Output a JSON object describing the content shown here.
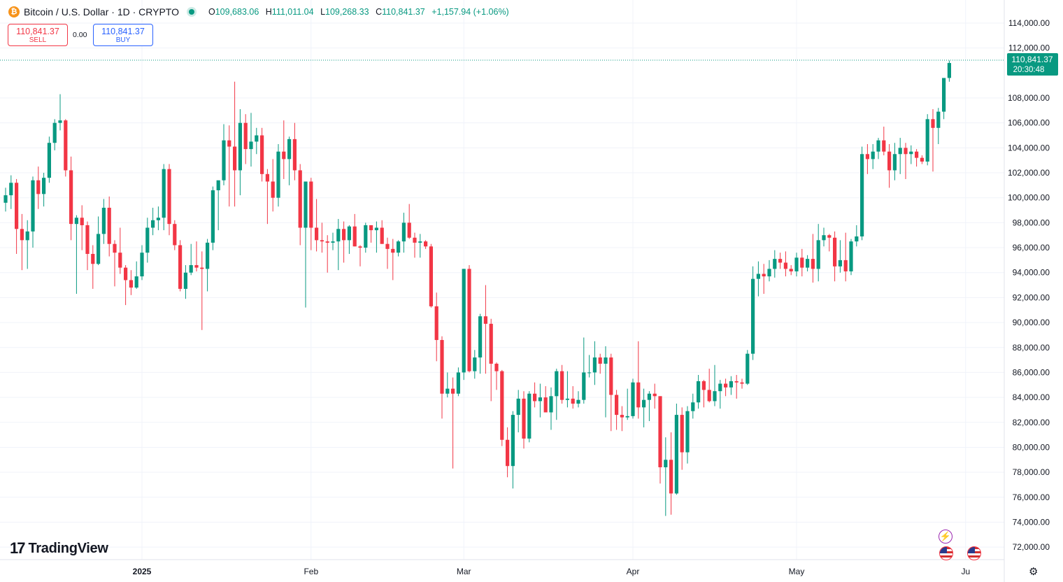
{
  "header": {
    "symbol_badge": "₿",
    "title": "Bitcoin / U.S. Dollar · 1D · CRYPTO",
    "open_key": "O",
    "open": "109,683.06",
    "high_key": "H",
    "high": "111,011.04",
    "low_key": "L",
    "low": "109,268.33",
    "close_key": "C",
    "close": "110,841.37",
    "change": "+1,157.94 (+1.06%)"
  },
  "trade": {
    "sell_price": "110,841.37",
    "sell_label": "SELL",
    "spread": "0.00",
    "buy_price": "110,841.37",
    "buy_label": "BUY"
  },
  "last_price": {
    "price": "110,841.37",
    "countdown": "20:30:48"
  },
  "brand": {
    "name": "TradingView",
    "mark": "17"
  },
  "colors": {
    "up": "#089981",
    "down": "#f23645",
    "grid": "#f0f3fa",
    "axis_text": "#131722",
    "last_price_bg": "#089981"
  },
  "icons": [
    "bitcoin-icon",
    "lightning-icon",
    "us-flag-icon",
    "settings-gear-icon"
  ],
  "chart_data": {
    "type": "candlestick",
    "ylim": [
      71000,
      115400
    ],
    "yticks": [
      "114,000.00",
      "112,000.00",
      "108,000.00",
      "106,000.00",
      "104,000.00",
      "102,000.00",
      "100,000.00",
      "98,000.00",
      "96,000.00",
      "94,000.00",
      "92,000.00",
      "90,000.00",
      "88,000.00",
      "86,000.00",
      "84,000.00",
      "82,000.00",
      "80,000.00",
      "78,000.00",
      "76,000.00",
      "74,000.00",
      "72,000.00"
    ],
    "ytick_values": [
      114000,
      112000,
      108000,
      106000,
      104000,
      102000,
      100000,
      98000,
      96000,
      94000,
      92000,
      90000,
      88000,
      86000,
      84000,
      82000,
      80000,
      78000,
      76000,
      74000,
      72000
    ],
    "xticks": [
      {
        "label": "2025",
        "index": 25,
        "bold": true
      },
      {
        "label": "Feb",
        "index": 56
      },
      {
        "label": "Mar",
        "index": 84
      },
      {
        "label": "Apr",
        "index": 115
      },
      {
        "label": "May",
        "index": 145
      },
      {
        "label": "Ju",
        "index": 176
      }
    ],
    "series_ohlc": [
      [
        99600,
        100800,
        98900,
        100200
      ],
      [
        100200,
        101800,
        99100,
        101200
      ],
      [
        101200,
        101500,
        95500,
        97500
      ],
      [
        97500,
        98700,
        94200,
        96600
      ],
      [
        96600,
        98200,
        94300,
        97300
      ],
      [
        97300,
        101700,
        96000,
        101400
      ],
      [
        101400,
        102500,
        99100,
        100300
      ],
      [
        100300,
        102000,
        99300,
        101600
      ],
      [
        101600,
        104900,
        101200,
        104400
      ],
      [
        104400,
        106300,
        103800,
        106000
      ],
      [
        106000,
        108300,
        105400,
        106200
      ],
      [
        106200,
        106300,
        101700,
        102200
      ],
      [
        102200,
        103300,
        96600,
        97900
      ],
      [
        97900,
        98600,
        92300,
        98400
      ],
      [
        98400,
        99400,
        95800,
        97800
      ],
      [
        97800,
        98100,
        94200,
        95500
      ],
      [
        95500,
        96200,
        92700,
        94700
      ],
      [
        94700,
        98500,
        94600,
        97100
      ],
      [
        97100,
        99900,
        96300,
        99200
      ],
      [
        99200,
        100100,
        95300,
        96300
      ],
      [
        96300,
        96600,
        92900,
        95600
      ],
      [
        95600,
        97600,
        93900,
        94400
      ],
      [
        94400,
        94600,
        91400,
        93400
      ],
      [
        93400,
        94200,
        92200,
        92800
      ],
      [
        92800,
        94900,
        92700,
        93700
      ],
      [
        93700,
        96200,
        93400,
        95600
      ],
      [
        95600,
        98400,
        94800,
        97600
      ],
      [
        97600,
        99200,
        97000,
        98200
      ],
      [
        98200,
        99300,
        97400,
        98400
      ],
      [
        98400,
        102700,
        97400,
        102300
      ],
      [
        102300,
        102700,
        97000,
        97900
      ],
      [
        97900,
        98200,
        95800,
        96200
      ],
      [
        96200,
        96600,
        92500,
        92700
      ],
      [
        92700,
        94600,
        91900,
        94000
      ],
      [
        94000,
        96300,
        93800,
        94600
      ],
      [
        94600,
        96500,
        94100,
        94400
      ],
      [
        94400,
        95700,
        89400,
        94300
      ],
      [
        94300,
        96700,
        92500,
        96400
      ],
      [
        96400,
        100900,
        95800,
        100600
      ],
      [
        100600,
        101200,
        97400,
        101400
      ],
      [
        101400,
        105900,
        101000,
        104600
      ],
      [
        104600,
        105800,
        99300,
        104100
      ],
      [
        104100,
        109300,
        99300,
        102200
      ],
      [
        102200,
        107100,
        100200,
        106000
      ],
      [
        106000,
        106700,
        102700,
        103900
      ],
      [
        103900,
        106800,
        102500,
        104500
      ],
      [
        104500,
        105600,
        103500,
        105000
      ],
      [
        105000,
        105600,
        101300,
        101900
      ],
      [
        101900,
        102300,
        97900,
        101300
      ],
      [
        101300,
        103100,
        98900,
        100000
      ],
      [
        100000,
        104300,
        99300,
        103700
      ],
      [
        103700,
        106200,
        101500,
        103100
      ],
      [
        103100,
        104900,
        101000,
        104700
      ],
      [
        104700,
        106000,
        101400,
        102200
      ],
      [
        102200,
        102700,
        96200,
        97600
      ],
      [
        97600,
        98100,
        91200,
        101300
      ],
      [
        101300,
        101600,
        95800,
        97600
      ],
      [
        97600,
        99900,
        95700,
        96600
      ],
      [
        96600,
        98000,
        95600,
        96500
      ],
      [
        96500,
        97000,
        94000,
        96400
      ],
      [
        96400,
        97200,
        95800,
        96500
      ],
      [
        96500,
        98300,
        94200,
        97500
      ],
      [
        97500,
        98100,
        94800,
        96600
      ],
      [
        96600,
        97800,
        95500,
        97700
      ],
      [
        97700,
        98700,
        96100,
        96100
      ],
      [
        96100,
        96200,
        94500,
        96000
      ],
      [
        96000,
        98000,
        95600,
        97800
      ],
      [
        97800,
        97800,
        96400,
        97400
      ],
      [
        97400,
        98100,
        95600,
        97600
      ],
      [
        97600,
        98200,
        96300,
        96300
      ],
      [
        96300,
        96800,
        94300,
        95900
      ],
      [
        95900,
        96700,
        93400,
        95600
      ],
      [
        95600,
        96600,
        95300,
        96500
      ],
      [
        96500,
        98800,
        95600,
        98000
      ],
      [
        98000,
        99500,
        96700,
        96800
      ],
      [
        96800,
        97200,
        95200,
        96400
      ],
      [
        96400,
        97100,
        95200,
        96500
      ],
      [
        96500,
        96600,
        95900,
        96100
      ],
      [
        96100,
        96300,
        91200,
        91300
      ],
      [
        91300,
        92400,
        86900,
        88600
      ],
      [
        88600,
        88900,
        82300,
        84300
      ],
      [
        84300,
        86000,
        84000,
        84700
      ],
      [
        84700,
        85600,
        78300,
        84300
      ],
      [
        84300,
        86400,
        84100,
        86000
      ],
      [
        86000,
        94300,
        85400,
        94300
      ],
      [
        94300,
        94600,
        86000,
        86100
      ],
      [
        86100,
        87800,
        85500,
        87200
      ],
      [
        87200,
        90700,
        85900,
        90500
      ],
      [
        90500,
        93000,
        85900,
        89900
      ],
      [
        89900,
        90300,
        83700,
        86700
      ],
      [
        86700,
        86800,
        84600,
        86100
      ],
      [
        86100,
        86200,
        80100,
        80600
      ],
      [
        80600,
        81600,
        77600,
        78500
      ],
      [
        78500,
        82900,
        76700,
        82600
      ],
      [
        82600,
        84600,
        81200,
        83900
      ],
      [
        83900,
        84500,
        79900,
        80700
      ],
      [
        80700,
        84500,
        80400,
        84300
      ],
      [
        84300,
        85200,
        83200,
        83700
      ],
      [
        83700,
        85100,
        82400,
        84000
      ],
      [
        84000,
        84900,
        82800,
        82800
      ],
      [
        82800,
        84800,
        81400,
        84100
      ],
      [
        84100,
        86300,
        82200,
        86100
      ],
      [
        86100,
        86600,
        83500,
        83800
      ],
      [
        83800,
        86100,
        83200,
        83900
      ],
      [
        83900,
        84900,
        83100,
        83500
      ],
      [
        83500,
        84500,
        83200,
        83800
      ],
      [
        83800,
        88800,
        83500,
        86000
      ],
      [
        86000,
        87400,
        85600,
        86000
      ],
      [
        86000,
        88500,
        85000,
        87200
      ],
      [
        87200,
        87500,
        85900,
        86700
      ],
      [
        86700,
        88100,
        82400,
        87200
      ],
      [
        87200,
        87500,
        81300,
        84200
      ],
      [
        84200,
        84600,
        81400,
        82600
      ],
      [
        82600,
        83300,
        81300,
        82400
      ],
      [
        82400,
        84700,
        82200,
        82500
      ],
      [
        82500,
        85500,
        82300,
        85200
      ],
      [
        85200,
        88500,
        82300,
        83200
      ],
      [
        83200,
        84700,
        81600,
        83800
      ],
      [
        83800,
        84500,
        82100,
        84300
      ],
      [
        84300,
        85100,
        83100,
        84100
      ],
      [
        84100,
        84100,
        77100,
        78400
      ],
      [
        78400,
        80800,
        74500,
        79000
      ],
      [
        79000,
        81200,
        74600,
        76300
      ],
      [
        76300,
        83500,
        76200,
        82600
      ],
      [
        82600,
        83200,
        78200,
        79600
      ],
      [
        79600,
        83300,
        78700,
        82900
      ],
      [
        82900,
        84300,
        82300,
        83600
      ],
      [
        83600,
        85800,
        83100,
        85300
      ],
      [
        85300,
        85400,
        83200,
        84600
      ],
      [
        84600,
        86300,
        83600,
        83700
      ],
      [
        83700,
        86600,
        83300,
        84500
      ],
      [
        84500,
        85400,
        83100,
        85100
      ],
      [
        85100,
        85500,
        84100,
        84800
      ],
      [
        84800,
        85700,
        84200,
        85300
      ],
      [
        85300,
        85800,
        83900,
        85200
      ],
      [
        85200,
        85500,
        84700,
        85100
      ],
      [
        85100,
        87800,
        85000,
        87500
      ],
      [
        87500,
        94500,
        87000,
        93500
      ],
      [
        93500,
        94900,
        92100,
        93900
      ],
      [
        93900,
        94700,
        92300,
        93700
      ],
      [
        93700,
        95000,
        93300,
        94300
      ],
      [
        94300,
        95800,
        93600,
        95100
      ],
      [
        95100,
        95600,
        94300,
        94800
      ],
      [
        94800,
        95700,
        93700,
        94300
      ],
      [
        94300,
        94600,
        93800,
        94100
      ],
      [
        94100,
        95600,
        93700,
        95200
      ],
      [
        95200,
        95900,
        93700,
        94400
      ],
      [
        94400,
        95400,
        94100,
        95100
      ],
      [
        95100,
        97100,
        93200,
        94300
      ],
      [
        94300,
        97900,
        93300,
        96600
      ],
      [
        96600,
        97600,
        96100,
        97000
      ],
      [
        97000,
        97100,
        95700,
        96800
      ],
      [
        96800,
        97300,
        93300,
        94500
      ],
      [
        94500,
        96600,
        94000,
        95000
      ],
      [
        95000,
        97200,
        93300,
        94100
      ],
      [
        94100,
        96700,
        93800,
        96500
      ],
      [
        96500,
        97800,
        96100,
        96900
      ],
      [
        96900,
        104100,
        96600,
        103500
      ],
      [
        103500,
        104300,
        101900,
        103100
      ],
      [
        103100,
        104300,
        102300,
        103700
      ],
      [
        103700,
        104800,
        103100,
        104600
      ],
      [
        104600,
        105700,
        103400,
        103700
      ],
      [
        103700,
        104300,
        100800,
        102200
      ],
      [
        102200,
        104400,
        101400,
        103500
      ],
      [
        103500,
        104800,
        101900,
        104000
      ],
      [
        104000,
        104400,
        101500,
        103500
      ],
      [
        103500,
        104200,
        102700,
        103700
      ],
      [
        103700,
        103900,
        102500,
        103200
      ],
      [
        103200,
        103400,
        102700,
        102900
      ],
      [
        102900,
        106700,
        102600,
        106300
      ],
      [
        106300,
        107100,
        102100,
        105600
      ],
      [
        105600,
        107200,
        104300,
        106900
      ],
      [
        106900,
        109400,
        106300,
        109600
      ],
      [
        109600,
        111000,
        109300,
        110800
      ]
    ]
  }
}
